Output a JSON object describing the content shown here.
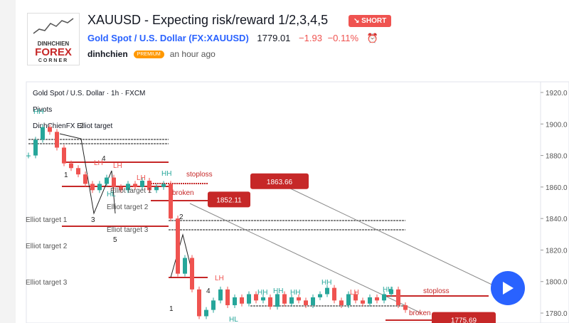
{
  "header": {
    "logo": [
      "DINHCHIEN",
      "FOREX",
      "CORNER"
    ],
    "title": "XAUUSD - Expecting risk/reward 1/2,3,4,5",
    "badge": "SHORT",
    "symbol": "Gold Spot / U.S. Dollar (FX:XAUUSD)",
    "price": "1779.01",
    "change": "−1.93",
    "change_pct": "−0.11%",
    "author": "dinhchien",
    "author_badge": "PREMIUM",
    "time": "an hour ago"
  },
  "chart": {
    "legend": "Gold Spot / U.S. Dollar · 1h · FXCM",
    "indicators": [
      "Pivots",
      "DinhChienFX Elliot target"
    ],
    "ylim": [
      1773.7,
      1924.5
    ],
    "yticks": [
      {
        "value": 1920,
        "label": "1920.0"
      },
      {
        "value": 1900,
        "label": "1900.0"
      },
      {
        "value": 1880,
        "label": "1880.0"
      },
      {
        "value": 1860,
        "label": "1860.0"
      },
      {
        "value": 1840,
        "label": "1840.0"
      },
      {
        "value": 1820,
        "label": "1820.0"
      },
      {
        "value": 1800,
        "label": "1800.0"
      },
      {
        "value": 1780,
        "label": "1780.0"
      }
    ],
    "closes": [
      1880,
      1890,
      1898,
      1895,
      1885,
      1875,
      1872,
      1868,
      1862,
      1858,
      1862,
      1866,
      1860,
      1858,
      1862,
      1860,
      1864,
      1858,
      1860,
      1862,
      1840,
      1805,
      1815,
      1795,
      1778,
      1782,
      1788,
      1795,
      1785,
      1790,
      1786,
      1792,
      1788,
      1790,
      1784,
      1792,
      1786,
      1790,
      1788,
      1785,
      1790,
      1792,
      1796,
      1788,
      1785,
      1792,
      1788,
      1786,
      1790,
      1788,
      1792,
      1795,
      1785,
      1782
    ],
    "price_labels": [
      1863.66,
      1852.11,
      1775.69
    ],
    "annotations": [
      "stoploss",
      "broken",
      "stoploss",
      "broken",
      "1",
      "2",
      "3",
      "4",
      "5",
      "2",
      "1",
      "4",
      "Elliot target 1",
      "Elliot target 2",
      "Elliot target 3",
      "Elliot target 1",
      "Elliot target 2",
      "Elliot target 3",
      "HH",
      "LH",
      "LH",
      "HH",
      "HL",
      "LH",
      "LH",
      "HH",
      "HH",
      "HH",
      "LH",
      "HH",
      "HH",
      "HL"
    ]
  }
}
